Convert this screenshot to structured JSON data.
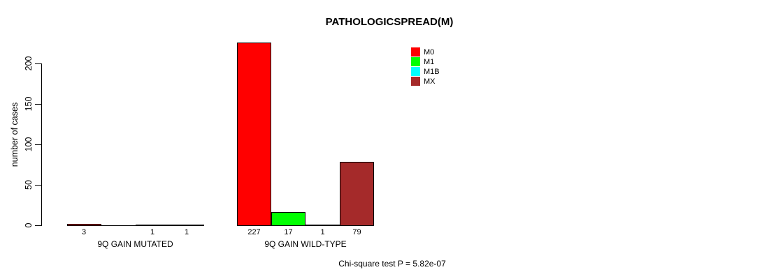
{
  "page": {
    "background": "#FFFFFF",
    "text_color": "#000000",
    "axis_color": "#000000"
  },
  "chart_data": {
    "type": "bar",
    "title": "PATHOLOGICSPREAD(M)",
    "ylabel": "number of cases",
    "xlabel": "",
    "ylim": [
      0,
      200
    ],
    "yticks": [
      0,
      50,
      100,
      150,
      200
    ],
    "grid": false,
    "legend_position": "top-right",
    "series": [
      {
        "name": "M0",
        "color": "#FF0000"
      },
      {
        "name": "M1",
        "color": "#00FF00"
      },
      {
        "name": "M1B",
        "color": "#00FFFF"
      },
      {
        "name": "MX",
        "color": "#A52A2A"
      }
    ],
    "categories": [
      "9Q GAIN MUTATED",
      "9Q GAIN WILD-TYPE"
    ],
    "groups": [
      {
        "label": "9Q GAIN MUTATED",
        "values": [
          3,
          0,
          1,
          1
        ],
        "value_labels": [
          "3",
          "",
          "1",
          "1"
        ]
      },
      {
        "label": "9Q GAIN WILD-TYPE",
        "values": [
          227,
          17,
          1,
          79
        ],
        "value_labels": [
          "227",
          "17",
          "1",
          "79"
        ]
      }
    ],
    "footnote": "Chi-square test P = 5.82e-07"
  }
}
